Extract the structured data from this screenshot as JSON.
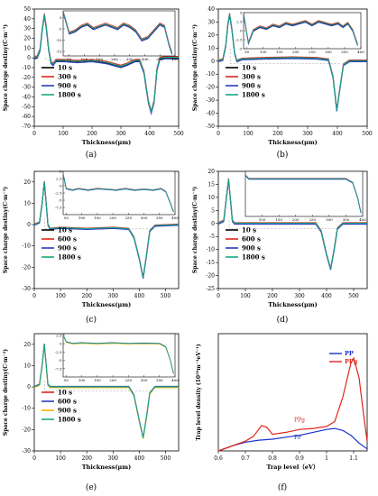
{
  "figure": {
    "panel_labels": [
      "(a)",
      "(b)",
      "(c)",
      "(d)",
      "(e)",
      "(f)"
    ]
  },
  "chart_data": [
    {
      "type": "line",
      "panel": "(a)",
      "xlabel": "Thickness(μm)",
      "ylabel": "Space charge destiny(C·m⁻³)",
      "xlim": [
        0,
        500
      ],
      "ylim": [
        -70,
        50
      ],
      "xticks": [
        0,
        100,
        200,
        300,
        400,
        500
      ],
      "yticks": [
        -70,
        -60,
        -50,
        -40,
        -30,
        -20,
        -10,
        0,
        10,
        20,
        30,
        40,
        50
      ],
      "legend": [
        "10 s",
        "300 s",
        "900 s",
        "1800 s"
      ],
      "colors": [
        "#000000",
        "#e0261b",
        "#2b3bbf",
        "#18a889"
      ],
      "curve": [
        [
          0,
          0
        ],
        [
          10,
          0.5
        ],
        [
          20,
          8
        ],
        [
          28,
          30
        ],
        [
          35,
          44
        ],
        [
          42,
          30
        ],
        [
          50,
          8
        ],
        [
          58,
          -5
        ],
        [
          65,
          -7
        ],
        [
          75,
          -3
        ],
        [
          100,
          -3
        ],
        [
          150,
          -4
        ],
        [
          200,
          -3
        ],
        [
          250,
          -5
        ],
        [
          300,
          -9
        ],
        [
          320,
          -7
        ],
        [
          350,
          -3
        ],
        [
          365,
          -3
        ],
        [
          380,
          -15
        ],
        [
          395,
          -45
        ],
        [
          405,
          -56
        ],
        [
          415,
          -45
        ],
        [
          425,
          -12
        ],
        [
          435,
          -1
        ],
        [
          450,
          0
        ],
        [
          500,
          0
        ]
      ],
      "series_offsets": [
        [
          0,
          0
        ],
        [
          0,
          1.5
        ],
        [
          0,
          -1
        ],
        [
          0,
          0.5
        ]
      ],
      "inset": {
        "xlim": [
          30,
          400
        ],
        "ylim": [
          -17,
          3
        ],
        "xticks": [
          50,
          100,
          150,
          200,
          250,
          300,
          350,
          400
        ],
        "yticks": [
          0,
          -5,
          -10,
          -15
        ],
        "curve": [
          [
            30,
            2.5
          ],
          [
            50,
            -7
          ],
          [
            70,
            -6
          ],
          [
            90,
            -4
          ],
          [
            110,
            -3
          ],
          [
            130,
            -5
          ],
          [
            150,
            -4
          ],
          [
            170,
            -3
          ],
          [
            190,
            -4
          ],
          [
            210,
            -5
          ],
          [
            230,
            -3
          ],
          [
            250,
            -4
          ],
          [
            270,
            -6
          ],
          [
            290,
            -10
          ],
          [
            310,
            -9
          ],
          [
            330,
            -6
          ],
          [
            350,
            -3
          ],
          [
            365,
            -4
          ],
          [
            380,
            -12
          ],
          [
            390,
            -16
          ]
        ]
      }
    },
    {
      "type": "line",
      "panel": "(b)",
      "xlabel": "Thickness(μm)",
      "ylabel": "Space charge destiny(C·m⁻³)",
      "xlim": [
        0,
        500
      ],
      "ylim": [
        -50,
        40
      ],
      "xticks": [
        0,
        100,
        200,
        300,
        400,
        500
      ],
      "yticks": [
        -50,
        -40,
        -30,
        -20,
        -10,
        0,
        10,
        20,
        30,
        40
      ],
      "legend": [
        "10 s",
        "300 s",
        "900 s",
        "1800 s"
      ],
      "colors": [
        "#000000",
        "#e0261b",
        "#2b3bbf",
        "#18a889"
      ],
      "curve": [
        [
          0,
          0
        ],
        [
          15,
          1
        ],
        [
          25,
          12
        ],
        [
          32,
          28
        ],
        [
          38,
          36
        ],
        [
          45,
          25
        ],
        [
          55,
          6
        ],
        [
          62,
          0
        ],
        [
          80,
          1.5
        ],
        [
          150,
          2
        ],
        [
          250,
          2.5
        ],
        [
          330,
          2
        ],
        [
          370,
          1
        ],
        [
          385,
          -12
        ],
        [
          398,
          -38
        ],
        [
          408,
          -22
        ],
        [
          420,
          -3
        ],
        [
          440,
          0
        ],
        [
          500,
          0
        ]
      ],
      "series_offsets": [
        [
          0,
          0
        ],
        [
          0,
          0.8
        ],
        [
          0,
          -0.5
        ],
        [
          0,
          0.3
        ]
      ],
      "inset": {
        "xlim": [
          40,
          400
        ],
        "ylim": [
          -5,
          5
        ],
        "xticks": [
          50,
          100,
          150,
          200,
          250,
          300,
          350,
          400
        ],
        "yticks": [
          5.0,
          2.5,
          0,
          -2.5,
          -5.0
        ],
        "curve": [
          [
            40,
            4.5
          ],
          [
            55,
            -3.5
          ],
          [
            70,
            0
          ],
          [
            90,
            1
          ],
          [
            110,
            0.5
          ],
          [
            130,
            1.5
          ],
          [
            150,
            1
          ],
          [
            170,
            2
          ],
          [
            190,
            1.5
          ],
          [
            210,
            2
          ],
          [
            230,
            2.5
          ],
          [
            250,
            1.5
          ],
          [
            270,
            2.5
          ],
          [
            290,
            2
          ],
          [
            310,
            1.5
          ],
          [
            330,
            2
          ],
          [
            345,
            1
          ],
          [
            360,
            2
          ],
          [
            375,
            0
          ],
          [
            390,
            -4
          ]
        ]
      }
    },
    {
      "type": "line",
      "panel": "(c)",
      "xlabel": "Thickness(μm)",
      "ylabel": "Space charge destiny(C·m⁻³)",
      "xlim": [
        0,
        550
      ],
      "ylim": [
        -30,
        25
      ],
      "xticks": [
        0,
        100,
        200,
        300,
        400,
        500
      ],
      "yticks": [
        -30,
        -20,
        -10,
        0,
        10,
        20
      ],
      "legend": [
        "10 s",
        "600 s",
        "900 s",
        "1800 s"
      ],
      "colors": [
        "#000000",
        "#e0261b",
        "#2b3bbf",
        "#18a889"
      ],
      "curve": [
        [
          0,
          0
        ],
        [
          20,
          1
        ],
        [
          30,
          10
        ],
        [
          38,
          20
        ],
        [
          44,
          12
        ],
        [
          52,
          0
        ],
        [
          60,
          -2
        ],
        [
          100,
          -1.5
        ],
        [
          200,
          -2
        ],
        [
          300,
          -1.5
        ],
        [
          360,
          -2
        ],
        [
          380,
          -6
        ],
        [
          400,
          -16
        ],
        [
          415,
          -25
        ],
        [
          428,
          -14
        ],
        [
          440,
          -3
        ],
        [
          460,
          -0.5
        ],
        [
          550,
          0
        ]
      ],
      "series_offsets": [
        [
          0,
          0
        ],
        [
          0,
          0.3
        ],
        [
          0,
          -0.3
        ],
        [
          0,
          0.1
        ]
      ],
      "inset": {
        "xlim": [
          40,
          400
        ],
        "ylim": [
          -10,
          5
        ],
        "xticks": [
          50,
          100,
          150,
          200,
          250,
          300,
          350,
          400
        ],
        "yticks": [
          5.0,
          2.5,
          0,
          -2.5,
          -5.0,
          -7.5
        ],
        "curve": [
          [
            40,
            4
          ],
          [
            50,
            -1
          ],
          [
            70,
            -1.5
          ],
          [
            90,
            -1
          ],
          [
            120,
            -1.5
          ],
          [
            150,
            -1
          ],
          [
            180,
            -1.2
          ],
          [
            210,
            -1.5
          ],
          [
            240,
            -1
          ],
          [
            270,
            -1.5
          ],
          [
            300,
            -1.2
          ],
          [
            330,
            -1.5
          ],
          [
            355,
            -1
          ],
          [
            370,
            -2
          ],
          [
            385,
            -6
          ],
          [
            395,
            -9
          ]
        ]
      }
    },
    {
      "type": "line",
      "panel": "(d)",
      "xlabel": "Thickness(μm)",
      "ylabel": "Space charge destiny(C·m⁻³)",
      "xlim": [
        0,
        550
      ],
      "ylim": [
        -25,
        20
      ],
      "xticks": [
        0,
        100,
        200,
        300,
        400,
        500
      ],
      "yticks": [
        -25,
        -20,
        -15,
        -10,
        -5,
        0,
        5,
        10,
        15,
        20
      ],
      "legend": [
        "10 s",
        "600 s",
        "900 s",
        "1800 s"
      ],
      "colors": [
        "#000000",
        "#e0261b",
        "#2b3bbf",
        "#18a889"
      ],
      "curve": [
        [
          0,
          0
        ],
        [
          20,
          1
        ],
        [
          30,
          10
        ],
        [
          38,
          17
        ],
        [
          44,
          10
        ],
        [
          52,
          1
        ],
        [
          60,
          0
        ],
        [
          360,
          0
        ],
        [
          380,
          -3
        ],
        [
          400,
          -12
        ],
        [
          415,
          -17.5
        ],
        [
          428,
          -10
        ],
        [
          440,
          -2
        ],
        [
          460,
          0
        ],
        [
          550,
          0
        ]
      ],
      "series_offsets": [
        [
          0,
          0
        ],
        [
          0,
          0.3
        ],
        [
          0,
          -0.3
        ],
        [
          0,
          0.1
        ]
      ],
      "inset": {
        "xlim": [
          50,
          400
        ],
        "ylim": [
          -10,
          2
        ],
        "xticks": [
          100,
          150,
          200,
          250,
          300,
          350,
          400
        ],
        "yticks": [],
        "curve": [
          [
            50,
            1
          ],
          [
            60,
            0
          ],
          [
            150,
            0
          ],
          [
            250,
            0
          ],
          [
            350,
            0
          ],
          [
            370,
            -1
          ],
          [
            385,
            -5
          ],
          [
            395,
            -9
          ]
        ]
      }
    },
    {
      "type": "line",
      "panel": "(e)",
      "xlabel": "Thickness(μm)",
      "ylabel": "Space charge destiny(C·m⁻³)",
      "xlim": [
        0,
        550
      ],
      "ylim": [
        -30,
        25
      ],
      "xticks": [
        0,
        100,
        200,
        300,
        400,
        500
      ],
      "yticks": [
        -30,
        -20,
        -10,
        0,
        10,
        20
      ],
      "legend": [
        "10 s",
        "600 s",
        "900 s",
        "1800 s"
      ],
      "colors": [
        "#e0261b",
        "#2b3bbf",
        "#f0b400",
        "#18a889"
      ],
      "curve": [
        [
          0,
          0
        ],
        [
          20,
          1
        ],
        [
          30,
          10
        ],
        [
          38,
          20
        ],
        [
          44,
          12
        ],
        [
          52,
          1
        ],
        [
          60,
          0
        ],
        [
          360,
          0
        ],
        [
          380,
          -4
        ],
        [
          400,
          -16
        ],
        [
          415,
          -24
        ],
        [
          428,
          -14
        ],
        [
          440,
          -3
        ],
        [
          460,
          0
        ],
        [
          550,
          0
        ]
      ],
      "series_offsets": [
        [
          0,
          0
        ],
        [
          0,
          0.3
        ],
        [
          0,
          -0.3
        ],
        [
          0,
          0.1
        ]
      ],
      "inset": {
        "xlim": [
          40,
          400
        ],
        "ylim": [
          -10,
          3
        ],
        "xticks": [
          50,
          100,
          150,
          200,
          250,
          300,
          350,
          400
        ],
        "yticks": [
          2.5,
          0,
          -2.5,
          -5.0,
          -7.5
        ],
        "curve": [
          [
            40,
            2.5
          ],
          [
            50,
            0.5
          ],
          [
            70,
            0
          ],
          [
            100,
            0.2
          ],
          [
            150,
            0
          ],
          [
            200,
            0.2
          ],
          [
            250,
            0
          ],
          [
            300,
            0.1
          ],
          [
            350,
            0
          ],
          [
            370,
            -1
          ],
          [
            385,
            -5
          ],
          [
            395,
            -9
          ]
        ]
      }
    },
    {
      "type": "line",
      "panel": "(f)",
      "xlabel": "Trap level（eV）",
      "ylabel": "Trap level density (10²⁰m⁻³eV⁻¹)",
      "xlim": [
        0.6,
        1.15
      ],
      "ylim": [
        0,
        1.2
      ],
      "xticks": [
        0.6,
        0.7,
        0.8,
        0.9,
        1.0,
        1.1
      ],
      "yticks": [],
      "legend": [
        "PP",
        "PPg"
      ],
      "colors": [
        "#1a2fd0",
        "#e0261b"
      ],
      "annotations": [
        "PPg",
        "PP"
      ],
      "series": [
        {
          "name": "PP",
          "values": [
            [
              0.6,
              0.0
            ],
            [
              0.65,
              0.05
            ],
            [
              0.7,
              0.09
            ],
            [
              0.75,
              0.11
            ],
            [
              0.8,
              0.12
            ],
            [
              0.85,
              0.14
            ],
            [
              0.9,
              0.16
            ],
            [
              0.95,
              0.19
            ],
            [
              1.0,
              0.22
            ],
            [
              1.03,
              0.23
            ],
            [
              1.06,
              0.21
            ],
            [
              1.09,
              0.16
            ],
            [
              1.12,
              0.08
            ],
            [
              1.15,
              0.02
            ]
          ]
        },
        {
          "name": "PPg",
          "values": [
            [
              0.6,
              0.0
            ],
            [
              0.65,
              0.05
            ],
            [
              0.7,
              0.1
            ],
            [
              0.73,
              0.15
            ],
            [
              0.76,
              0.26
            ],
            [
              0.78,
              0.24
            ],
            [
              0.8,
              0.17
            ],
            [
              0.85,
              0.19
            ],
            [
              0.9,
              0.22
            ],
            [
              0.95,
              0.23
            ],
            [
              1.0,
              0.25
            ],
            [
              1.03,
              0.3
            ],
            [
              1.06,
              0.55
            ],
            [
              1.09,
              0.9
            ],
            [
              1.1,
              0.95
            ],
            [
              1.12,
              0.75
            ],
            [
              1.14,
              0.3
            ],
            [
              1.15,
              0.1
            ]
          ]
        }
      ]
    }
  ]
}
